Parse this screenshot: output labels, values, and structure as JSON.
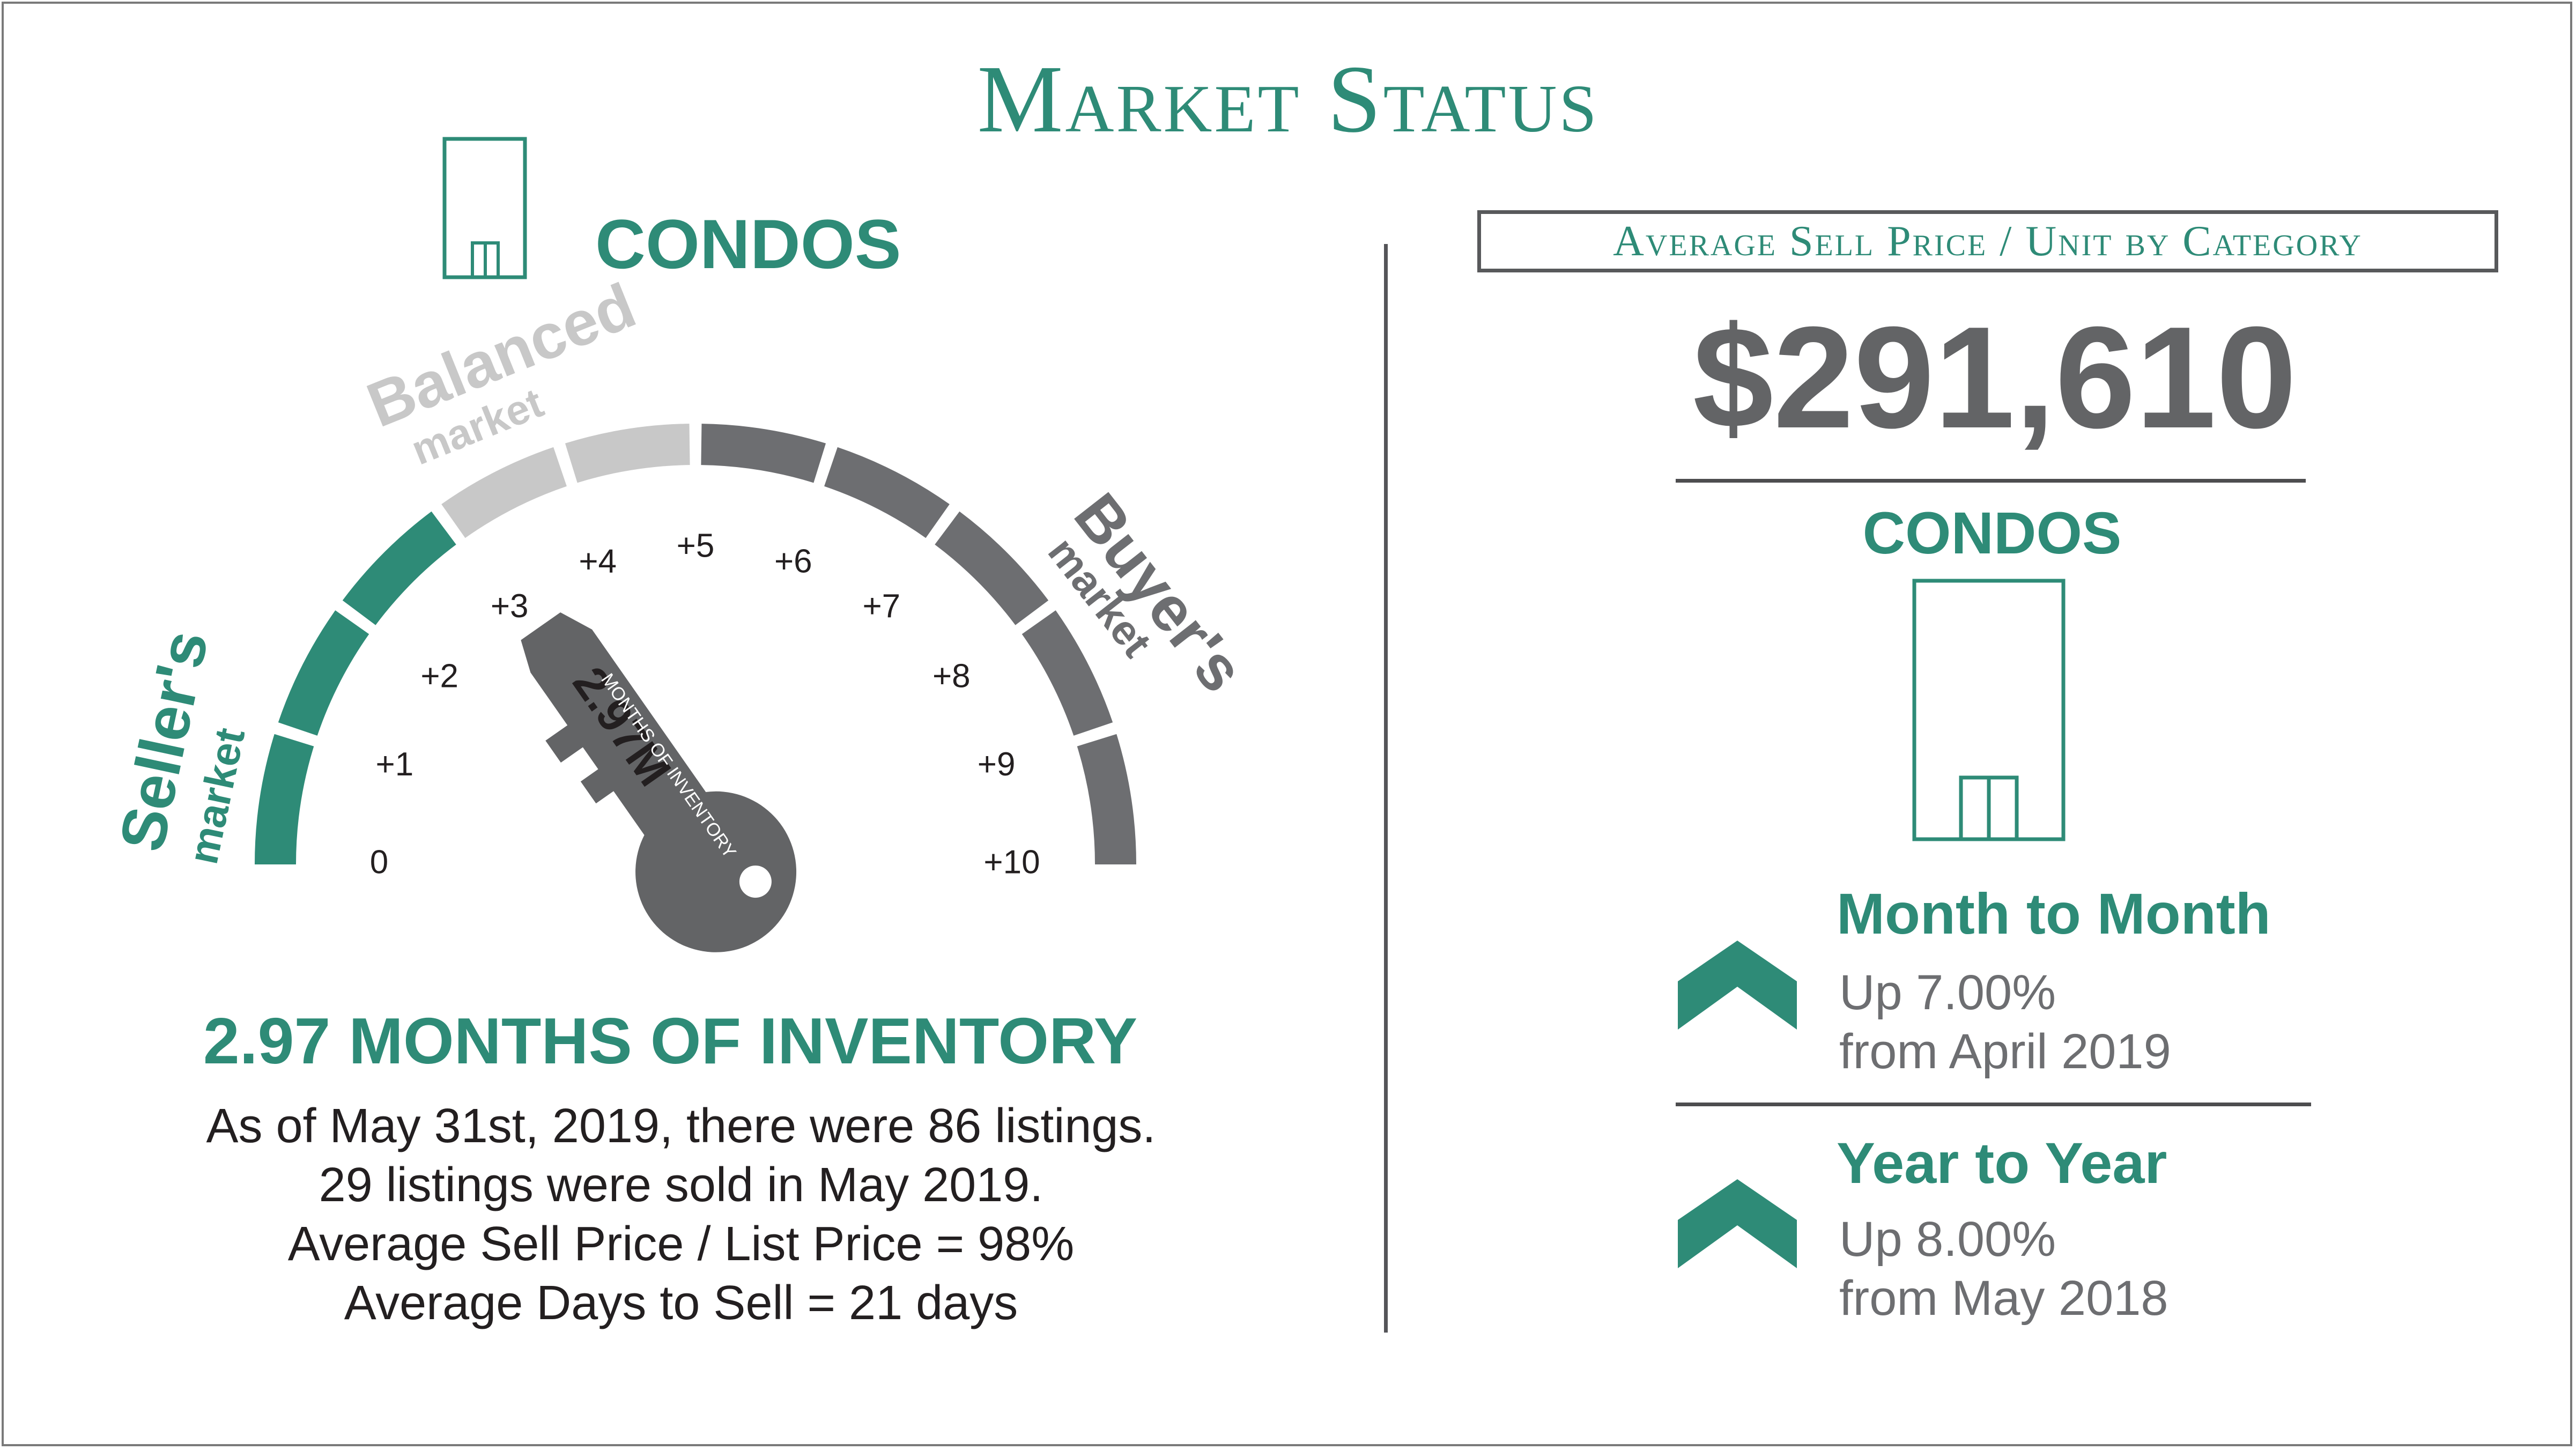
{
  "title": "Market Status",
  "left": {
    "category": "CONDOS",
    "gauge": {
      "zones": [
        "Seller's",
        "Balanced",
        "Buyer's"
      ],
      "zone_sub": "market",
      "ticks": [
        "0",
        "+1",
        "+2",
        "+3",
        "+4",
        "+5",
        "+6",
        "+7",
        "+8",
        "+9",
        "+10"
      ],
      "key_value": "2.97M",
      "key_label": "MONTHS OF INVENTORY",
      "value": 2.97,
      "min": 0,
      "max": 10,
      "colors": {
        "seller": "#2e8b77",
        "balanced": "#c8c8c8",
        "buyer": "#6d6e71"
      }
    },
    "headline": "2.97 MONTHS OF INVENTORY",
    "details": [
      "As of May 31st, 2019, there were 86 listings.",
      "29 listings were sold in May 2019.",
      "Average Sell Price / List Price = 98%",
      "Average Days to Sell = 21 days"
    ]
  },
  "right": {
    "box_label": "Average Sell Price / Unit by Category",
    "price": "$291,610",
    "category": "CONDOS",
    "month": {
      "label": "Month to Month",
      "line1": "Up 7.00%",
      "line2": "from April 2019"
    },
    "year": {
      "label": "Year to Year",
      "line1": "Up 8.00%",
      "line2": "from May 2018"
    }
  },
  "colors": {
    "accent": "#2e8b77",
    "dark_gray": "#636466",
    "light_gray": "#c8c8c8"
  }
}
